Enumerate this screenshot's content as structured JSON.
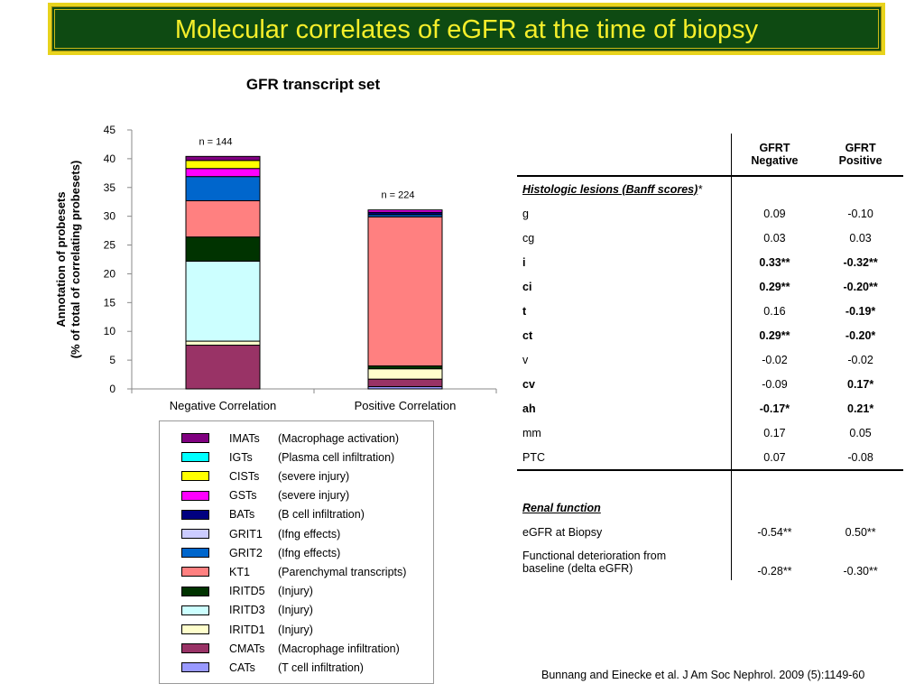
{
  "header": {
    "title": "Molecular correlates of eGFR at the time of biopsy"
  },
  "chart_data": {
    "type": "bar",
    "stacked": true,
    "title": "GFR transcript set",
    "ylabel": "Annotation of probesets\n(% of total of correlating probesets)",
    "ylabel_lines": [
      "Annotation of probesets",
      "(% of total of correlating probesets)"
    ],
    "ylim": [
      0,
      45
    ],
    "yticks": [
      0,
      5,
      10,
      15,
      20,
      25,
      30,
      35,
      40,
      45
    ],
    "categories": [
      "Negative Correlation",
      "Positive Correlation"
    ],
    "annotations": [
      "n = 144",
      "n = 224"
    ],
    "grid": false,
    "legend_position": "bottom",
    "series": [
      {
        "name": "CATs",
        "desc": "(T cell infiltration)",
        "color": "#9999ff",
        "values": [
          0.0,
          0.4
        ]
      },
      {
        "name": "CMATs",
        "desc": "(Macrophage infiltration)",
        "color": "#993366",
        "values": [
          7.6,
          1.3
        ]
      },
      {
        "name": "IRITD1",
        "desc": "(Injury)",
        "color": "#ffffcc",
        "values": [
          0.7,
          1.8
        ]
      },
      {
        "name": "IRITD3",
        "desc": "(Injury)",
        "color": "#ccffff",
        "values": [
          13.9,
          0.0
        ]
      },
      {
        "name": "IRITD5",
        "desc": "(Injury)",
        "color": "#003300",
        "values": [
          4.2,
          0.5
        ]
      },
      {
        "name": "KT1",
        "desc": "(Parenchymal transcripts)",
        "color": "#ff8080",
        "values": [
          6.3,
          25.9
        ]
      },
      {
        "name": "GRIT2",
        "desc": "(Ifng effects)",
        "color": "#0066cc",
        "values": [
          4.2,
          0.4
        ]
      },
      {
        "name": "GRIT1",
        "desc": "(Ifng effects)",
        "color": "#ccccff",
        "values": [
          0.0,
          0.0
        ]
      },
      {
        "name": "BATs",
        "desc": "(B cell infiltration)",
        "color": "#000080",
        "values": [
          0.0,
          0.4
        ]
      },
      {
        "name": "GSTs",
        "desc": "(severe injury)",
        "color": "#ff00ff",
        "values": [
          1.4,
          0.4
        ]
      },
      {
        "name": "CISTs",
        "desc": "(severe injury)",
        "color": "#ffff00",
        "values": [
          1.4,
          0.0
        ]
      },
      {
        "name": "IGTs",
        "desc": "(Plasma cell infiltration)",
        "color": "#00ffff",
        "values": [
          0.0,
          0.0
        ]
      },
      {
        "name": "IMATs",
        "desc": "(Macrophage activation)",
        "color": "#800080",
        "values": [
          0.7,
          0.0
        ]
      }
    ]
  },
  "table": {
    "headers": {
      "col1_line1": "GFRT",
      "col1_line2": "Negative",
      "col2_line1": "GFRT",
      "col2_line2": "Positive"
    },
    "section1": {
      "title": "Histologic lesions (Banff scores)",
      "mark": "*"
    },
    "rows1": [
      {
        "label": "g",
        "neg": "0.09",
        "pos": "-0.10",
        "bold_label": false,
        "bold_neg": false,
        "bold_pos": false
      },
      {
        "label": "cg",
        "neg": "0.03",
        "pos": "0.03",
        "bold_label": false,
        "bold_neg": false,
        "bold_pos": false
      },
      {
        "label": "i",
        "neg": "0.33**",
        "pos": "-0.32**",
        "bold_label": true,
        "bold_neg": true,
        "bold_pos": true
      },
      {
        "label": "ci",
        "neg": "0.29**",
        "pos": "-0.20**",
        "bold_label": true,
        "bold_neg": true,
        "bold_pos": true
      },
      {
        "label": "t",
        "neg": "0.16",
        "pos": "-0.19*",
        "bold_label": true,
        "bold_neg": false,
        "bold_pos": true
      },
      {
        "label": "ct",
        "neg": "0.29**",
        "pos": "-0.20*",
        "bold_label": true,
        "bold_neg": true,
        "bold_pos": true
      },
      {
        "label": "v",
        "neg": "-0.02",
        "pos": "-0.02",
        "bold_label": false,
        "bold_neg": false,
        "bold_pos": false
      },
      {
        "label": "cv",
        "neg": "-0.09",
        "pos": "0.17*",
        "bold_label": true,
        "bold_neg": false,
        "bold_pos": true
      },
      {
        "label": "ah",
        "neg": "-0.17*",
        "pos": "0.21*",
        "bold_label": true,
        "bold_neg": true,
        "bold_pos": true
      },
      {
        "label": "mm",
        "neg": "0.17",
        "pos": "0.05",
        "bold_label": false,
        "bold_neg": false,
        "bold_pos": false
      },
      {
        "label": "PTC",
        "neg": "0.07",
        "pos": "-0.08",
        "bold_label": false,
        "bold_neg": false,
        "bold_pos": false
      }
    ],
    "section2": {
      "title": "Renal function"
    },
    "rows2": [
      {
        "label": "eGFR at Biopsy",
        "neg": "-0.54**",
        "pos": "0.50**"
      },
      {
        "label_line1": "Functional deterioration from",
        "label_line2": "baseline (delta eGFR)",
        "neg": "-0.28**",
        "pos": "-0.30**"
      }
    ]
  },
  "citation": "Bunnang and Einecke et al.  J Am Soc Nephrol. 2009 (5):1149-60"
}
